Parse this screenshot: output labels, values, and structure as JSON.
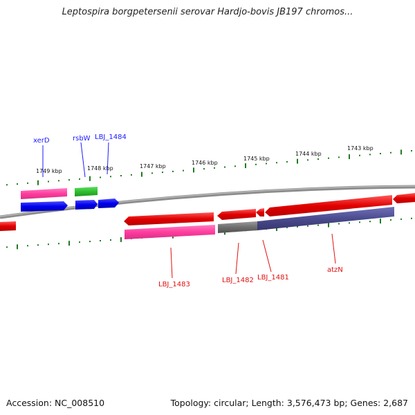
{
  "title": "Leptospira borgpetersenii serovar Hardjo-bovis JB197 chromos...",
  "footer": {
    "accession": "Accession: NC_008510",
    "topology": "Topology: circular; Length: 3,576,473 bp; Genes: 2,687"
  },
  "ticks": [
    "1749 kbp",
    "1748 kbp",
    "1747 kbp",
    "1746 kbp",
    "1745 kbp",
    "1744 kbp",
    "1743 kbp"
  ],
  "genes_top": [
    "xerD",
    "rsbW",
    "LBJ_1484"
  ],
  "genes_bottom": [
    "LBJ_1483",
    "LBJ_1482",
    "LBJ_1481",
    "atzN"
  ],
  "colors": {
    "forward_cds": "#0000ee",
    "reverse_cds": "#ee0000",
    "pink": "#ff3d9e",
    "green": "#2fbf2f",
    "gray": "#6e6e6e",
    "purple": "#4b4b8f",
    "backbone": "#8c8c8c",
    "tick": "#1f7a1f",
    "label_blue": "#1a1aff",
    "label_red": "#e01010"
  }
}
